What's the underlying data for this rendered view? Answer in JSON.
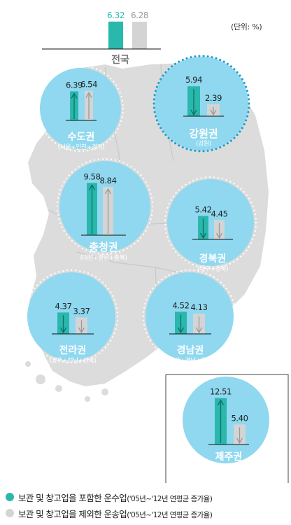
{
  "colors": {
    "teal": "#2ab8ad",
    "grey": "#d4d4d4",
    "bubble": "#8fd8ef",
    "bubble_dot": "#1e9ec8",
    "map": "#dcdcdc",
    "map_line": "#c8c8c8"
  },
  "unit_label": "(단위: %)",
  "legend": [
    {
      "color_key": "teal",
      "main": "보관 및 창고업을 포함한 운수업",
      "sub": "('05년~'12년 연평균 증가율)"
    },
    {
      "color_key": "grey",
      "main": "보관 및 창고업을 제외한 운송업",
      "sub": "('05년~'12년 연평균 증가율)"
    }
  ],
  "chart_data": {
    "type": "bar",
    "title": "",
    "series": [
      {
        "name": "보관 및 창고업을 포함한 운수업('05년~'12년 연평균 증가율)",
        "color_key": "teal"
      },
      {
        "name": "보관 및 창고업을 제외한 운송업('05년~'12년 연평균 증가율)",
        "color_key": "grey"
      }
    ],
    "regions": [
      {
        "name": "전국",
        "sub": "",
        "values": [
          6.32,
          6.28
        ],
        "arrows": [
          "none",
          "none"
        ]
      },
      {
        "name": "수도권",
        "sub": "(서울+인천+경기)",
        "values": [
          6.39,
          6.54
        ],
        "arrows": [
          "up",
          "up"
        ]
      },
      {
        "name": "강원권",
        "sub": "(강원)",
        "values": [
          5.94,
          2.39
        ],
        "arrows": [
          "down",
          "down"
        ]
      },
      {
        "name": "충청권",
        "sub": "(대전+충남+충북)",
        "values": [
          9.58,
          8.84
        ],
        "arrows": [
          "up",
          "up"
        ]
      },
      {
        "name": "경북권",
        "sub": "(대구+경북)",
        "values": [
          5.42,
          4.45
        ],
        "arrows": [
          "down",
          "down"
        ]
      },
      {
        "name": "전라권",
        "sub": "(광주+전남+전북)",
        "values": [
          4.37,
          3.37
        ],
        "arrows": [
          "down",
          "down"
        ]
      },
      {
        "name": "경남권",
        "sub": "(부산+경남+울산)",
        "values": [
          4.52,
          4.13
        ],
        "arrows": [
          "down",
          "down"
        ]
      },
      {
        "name": "제주권",
        "sub": "(제주)",
        "values": [
          12.51,
          5.4
        ],
        "arrows": [
          "up",
          "down"
        ]
      }
    ]
  }
}
